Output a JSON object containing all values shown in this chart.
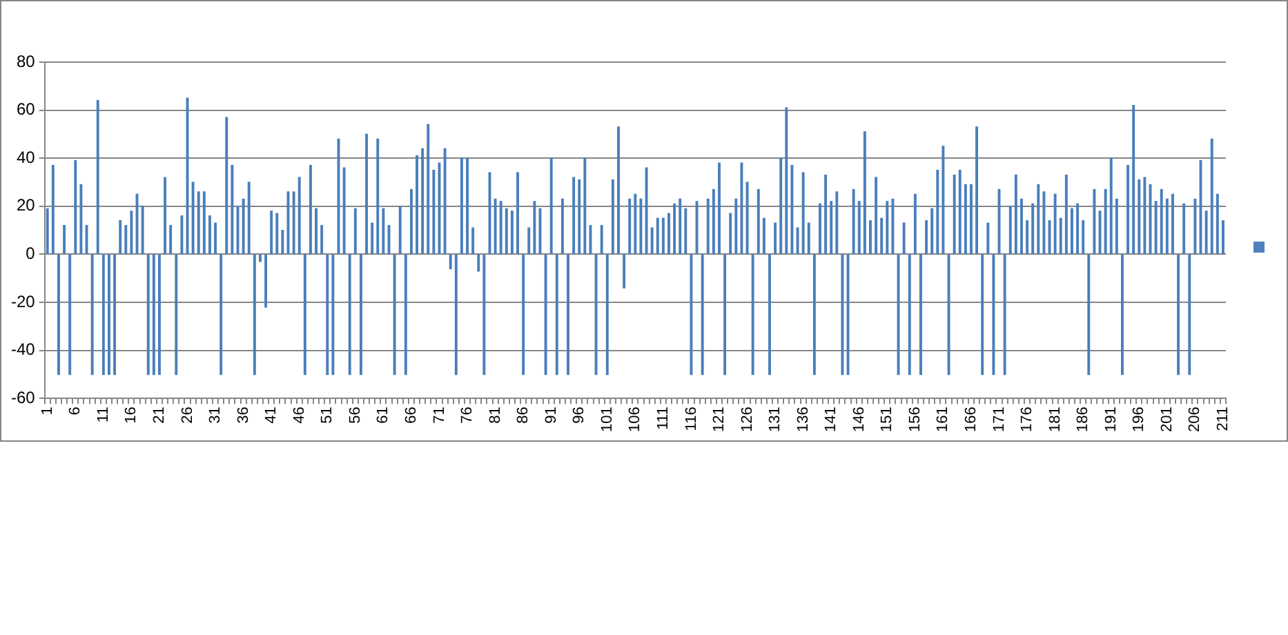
{
  "chart_data": {
    "type": "bar",
    "color": "#4a7ebb",
    "categories": [
      "1",
      null,
      null,
      null,
      null,
      "6",
      null,
      null,
      null,
      null,
      "11",
      null,
      null,
      null,
      null,
      "16",
      null,
      null,
      null,
      null,
      "21",
      null,
      null,
      null,
      null,
      "26",
      null,
      null,
      null,
      null,
      "31",
      null,
      null,
      null,
      null,
      "36",
      null,
      null,
      null,
      null,
      "41",
      null,
      null,
      null,
      null,
      "46",
      null,
      null,
      null,
      null,
      "51",
      null,
      null,
      null,
      null,
      "56",
      null,
      null,
      null,
      null,
      "61",
      null,
      null,
      null,
      null,
      "66",
      null,
      null,
      null,
      null,
      "71",
      null,
      null,
      null,
      null,
      "76",
      null,
      null,
      null,
      null,
      "81",
      null,
      null,
      null,
      null,
      "86",
      null,
      null,
      null,
      null,
      "91",
      null,
      null,
      null,
      null,
      "96",
      null,
      null,
      null,
      null,
      "101",
      null,
      null,
      null,
      null,
      "106",
      null,
      null,
      null,
      null,
      "111",
      null,
      null,
      null,
      null,
      "116",
      null,
      null,
      null,
      null,
      "121",
      null,
      null,
      null,
      null,
      "126",
      null,
      null,
      null,
      null,
      "131",
      null,
      null,
      null,
      null,
      "136",
      null,
      null,
      null,
      null,
      "141",
      null,
      null,
      null,
      null,
      "146",
      null,
      null,
      null,
      null,
      "151",
      null,
      null,
      null,
      null,
      "156",
      null,
      null,
      null,
      null,
      "161",
      null,
      null,
      null,
      null,
      "166",
      null,
      null,
      null,
      null,
      "171",
      null,
      null,
      null,
      null,
      "176",
      null,
      null,
      null,
      null,
      "181",
      null,
      null,
      null,
      null,
      "186",
      null,
      null,
      null,
      null,
      "191",
      null,
      null,
      null,
      null,
      "196",
      null,
      null,
      null,
      null,
      "201",
      null,
      null,
      null,
      null,
      "206",
      null,
      null,
      null,
      null,
      "211"
    ],
    "values": [
      19,
      37,
      -50,
      12,
      -50,
      39,
      29,
      12,
      -50,
      64,
      -50,
      -50,
      -50,
      14,
      12,
      18,
      25,
      20,
      -50,
      -50,
      -50,
      32,
      12,
      -50,
      16,
      65,
      30,
      26,
      26,
      16,
      13,
      -50,
      57,
      37,
      20,
      23,
      30,
      -50,
      -3,
      -22,
      18,
      17,
      10,
      26,
      26,
      32,
      -50,
      37,
      19,
      12,
      -50,
      -50,
      48,
      36,
      -50,
      19,
      -50,
      50,
      13,
      48,
      19,
      12,
      -50,
      20,
      -50,
      27,
      41,
      44,
      54,
      35,
      38,
      44,
      -6,
      -50,
      40,
      40,
      11,
      -7,
      -50,
      34,
      23,
      22,
      19,
      18,
      34,
      -50,
      11,
      22,
      19,
      -50,
      40,
      -50,
      23,
      -50,
      32,
      31,
      40,
      12,
      -50,
      12,
      -50,
      31,
      53,
      -14,
      23,
      25,
      23,
      36,
      11,
      15,
      15,
      17,
      21,
      23,
      19,
      -50,
      22,
      -50,
      23,
      27,
      38,
      -50,
      17,
      23,
      38,
      30,
      -50,
      27,
      15,
      -50,
      13,
      40,
      61,
      37,
      11,
      34,
      13,
      -50,
      21,
      33,
      22,
      26,
      -50,
      -50,
      27,
      22,
      51,
      14,
      32,
      15,
      22,
      23,
      -50,
      13,
      -50,
      25,
      -50,
      14,
      19,
      35,
      45,
      -50,
      33,
      35,
      29,
      29,
      53,
      -50,
      13,
      -50,
      27,
      -50,
      20,
      33,
      23,
      14,
      21,
      29,
      26,
      14,
      25,
      15,
      33,
      19,
      21,
      14,
      -50,
      27,
      18,
      27,
      40,
      23,
      -50,
      37,
      62,
      31,
      32,
      29,
      22,
      27,
      23,
      25,
      -50,
      21,
      -50,
      23,
      39,
      18,
      48,
      25,
      14
    ],
    "ylim": [
      -60,
      80
    ],
    "yticks": [
      -60,
      -40,
      -20,
      0,
      20,
      40,
      60,
      80
    ],
    "grid": "y"
  }
}
